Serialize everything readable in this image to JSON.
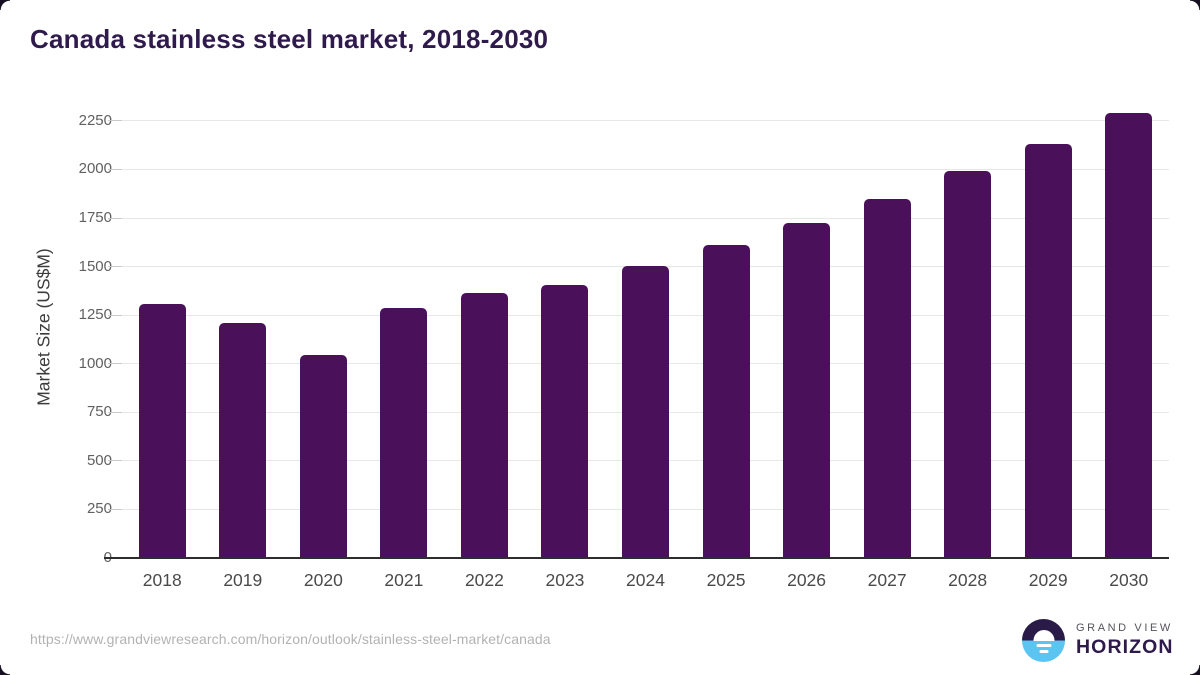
{
  "chart_data": {
    "type": "bar",
    "title": "Canada stainless steel market, 2018-2030",
    "categories": [
      "2018",
      "2019",
      "2020",
      "2021",
      "2022",
      "2023",
      "2024",
      "2025",
      "2026",
      "2027",
      "2028",
      "2029",
      "2030"
    ],
    "values": [
      1310,
      1210,
      1045,
      1285,
      1365,
      1405,
      1505,
      1610,
      1725,
      1850,
      1990,
      2130,
      2290
    ],
    "xlabel": "",
    "ylabel": "Market Size (US$M)",
    "ylim": [
      0,
      2378
    ],
    "yticks": [
      0,
      250,
      500,
      750,
      1000,
      1250,
      1500,
      1750,
      2000,
      2250
    ],
    "grid": true,
    "legend_position": "none",
    "bar_color": "#4a1059"
  },
  "footer": {
    "source_url": "https://www.grandviewresearch.com/horizon/outlook/stainless-steel-market/canada",
    "logo": {
      "line1": "GRAND VIEW",
      "line2": "HORIZON"
    }
  },
  "colors": {
    "bar": "#4a1059",
    "title": "#2f1a4c",
    "gridline": "#e7e7e7",
    "tick": "#c9c9c9",
    "axis_line": "#2d2d2d",
    "y_tick_label": "#606060",
    "x_tick_label": "#4a4a4a",
    "axis_title": "#3c3c3c",
    "source_url": "#b2b2b2",
    "logo_top_half": "#2a1a47",
    "logo_bottom_half": "#5bc4f1",
    "logo_text_small": "#56525b",
    "logo_text_big": "#2f1a4c"
  }
}
